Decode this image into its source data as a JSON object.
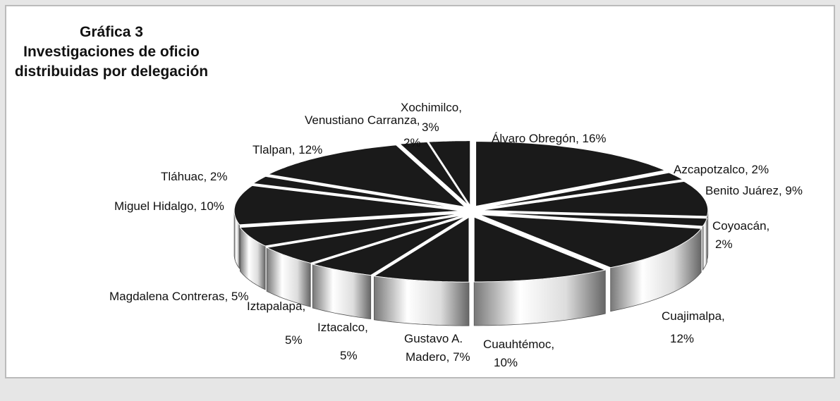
{
  "chart_data": {
    "type": "pie3d",
    "title_lines": [
      "Gráfica 3",
      "Investigaciones de oficio",
      "distribuidas por delegación"
    ],
    "values": [
      16,
      2,
      9,
      2,
      12,
      10,
      7,
      5,
      5,
      5,
      10,
      2,
      12,
      2,
      3
    ],
    "value_labels": [
      [
        "Álvaro Obregón, 16%"
      ],
      [
        "Azcapotzalco, 2%"
      ],
      [
        "Benito Juárez, 9%"
      ],
      [
        "Coyoacán,",
        "2%"
      ],
      [
        "Cuajimalpa,",
        "12%"
      ],
      [
        "Cuauhtémoc,",
        "10%"
      ],
      [
        "Gustavo A.",
        "Madero, 7%"
      ],
      [
        "Iztacalco,",
        "5%"
      ],
      [
        "Iztapalapa,",
        "5%"
      ],
      [
        "Magdalena Contreras, 5%"
      ],
      [
        "Miguel Hidalgo, 10%"
      ],
      [
        "Tláhuac, 2%"
      ],
      [
        "Tlalpan, 12%"
      ],
      [
        "Venustiano Carranza,",
        "2%"
      ],
      [
        "Xochimilco,",
        "3%"
      ]
    ],
    "color": "#1a1a1a"
  }
}
